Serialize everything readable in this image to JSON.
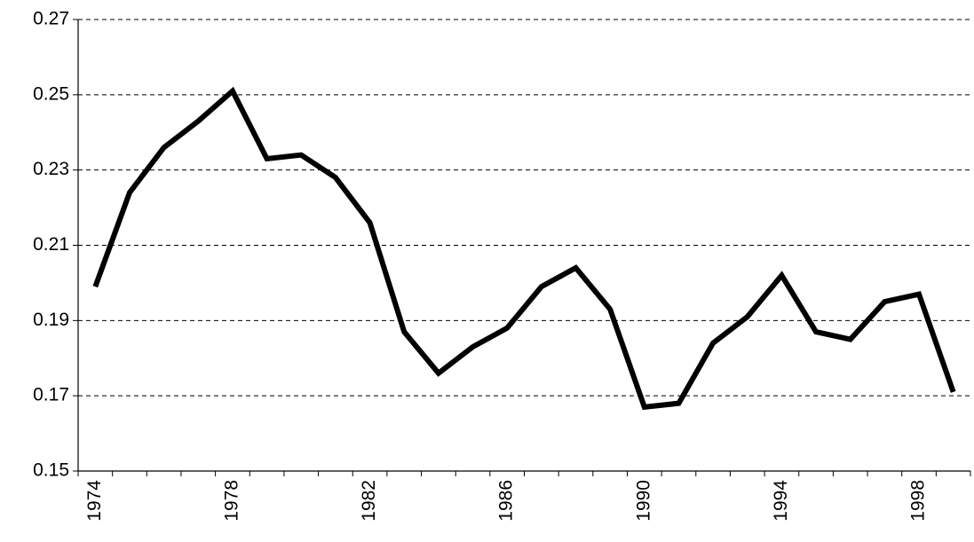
{
  "chart_data": {
    "type": "line",
    "categories": [
      "1974",
      null,
      null,
      null,
      "1978",
      null,
      null,
      null,
      "1982",
      null,
      null,
      null,
      "1986",
      null,
      null,
      null,
      "1990",
      null,
      null,
      null,
      "1994",
      null,
      null,
      null,
      "1998",
      null
    ],
    "series": [
      {
        "color": "#000000",
        "values": [
          0.199,
          0.224,
          0.236,
          0.243,
          0.251,
          0.233,
          0.234,
          0.228,
          0.216,
          0.187,
          0.176,
          0.183,
          0.188,
          0.199,
          0.204,
          0.193,
          0.167,
          0.168,
          0.184,
          0.191,
          0.202,
          0.187,
          0.185,
          0.195,
          0.197,
          0.171
        ]
      }
    ],
    "ylim": [
      0.15,
      0.27
    ],
    "yticks": [
      0.15,
      0.17,
      0.19,
      0.21,
      0.23,
      0.25,
      0.27
    ],
    "grid": true
  }
}
